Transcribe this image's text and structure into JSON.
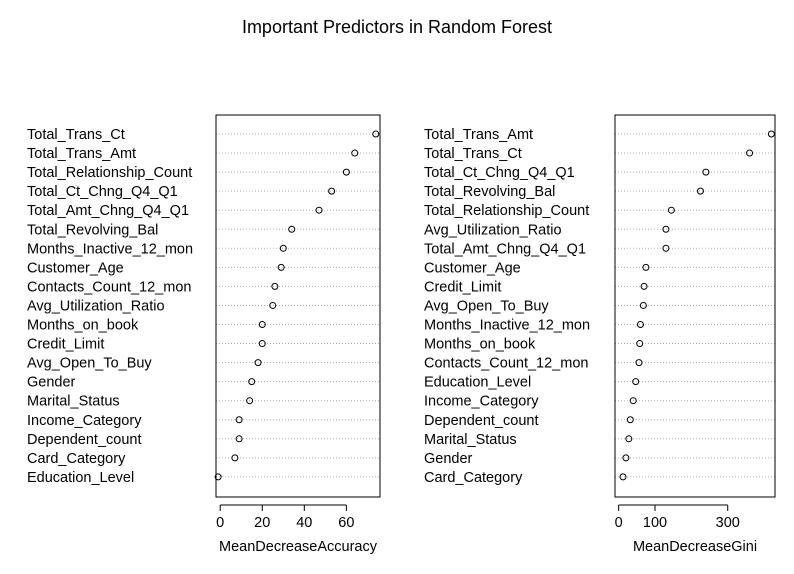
{
  "title": "Important Predictors in Random Forest",
  "chart_data": [
    {
      "type": "dotchart",
      "title": "Important Predictors in Random Forest",
      "xlabel": "MeanDecreaseAccuracy",
      "xlim": [
        -2,
        76
      ],
      "xticks": [
        0,
        20,
        40,
        60
      ],
      "grid": "dotted horizontal lines",
      "categories": [
        "Total_Trans_Ct",
        "Total_Trans_Amt",
        "Total_Relationship_Count",
        "Total_Ct_Chng_Q4_Q1",
        "Total_Amt_Chng_Q4_Q1",
        "Total_Revolving_Bal",
        "Months_Inactive_12_mon",
        "Customer_Age",
        "Contacts_Count_12_mon",
        "Avg_Utilization_Ratio",
        "Months_on_book",
        "Credit_Limit",
        "Avg_Open_To_Buy",
        "Gender",
        "Marital_Status",
        "Income_Category",
        "Dependent_count",
        "Card_Category",
        "Education_Level"
      ],
      "values": [
        74,
        64,
        60,
        53,
        47,
        34,
        30,
        29,
        26,
        25,
        20,
        20,
        18,
        15,
        14,
        9,
        9,
        7,
        -1
      ]
    },
    {
      "type": "dotchart",
      "xlabel": "MeanDecreaseGini",
      "xlim": [
        -10,
        430
      ],
      "xticks": [
        0,
        100,
        300
      ],
      "grid": "dotted horizontal lines",
      "categories": [
        "Total_Trans_Amt",
        "Total_Trans_Ct",
        "Total_Ct_Chng_Q4_Q1",
        "Total_Revolving_Bal",
        "Total_Relationship_Count",
        "Avg_Utilization_Ratio",
        "Total_Amt_Chng_Q4_Q1",
        "Customer_Age",
        "Credit_Limit",
        "Avg_Open_To_Buy",
        "Months_Inactive_12_mon",
        "Months_on_book",
        "Contacts_Count_12_mon",
        "Education_Level",
        "Income_Category",
        "Dependent_count",
        "Marital_Status",
        "Gender",
        "Card_Category"
      ],
      "values": [
        420,
        360,
        240,
        225,
        145,
        130,
        130,
        75,
        70,
        68,
        60,
        58,
        56,
        47,
        40,
        32,
        28,
        20,
        12
      ]
    }
  ]
}
